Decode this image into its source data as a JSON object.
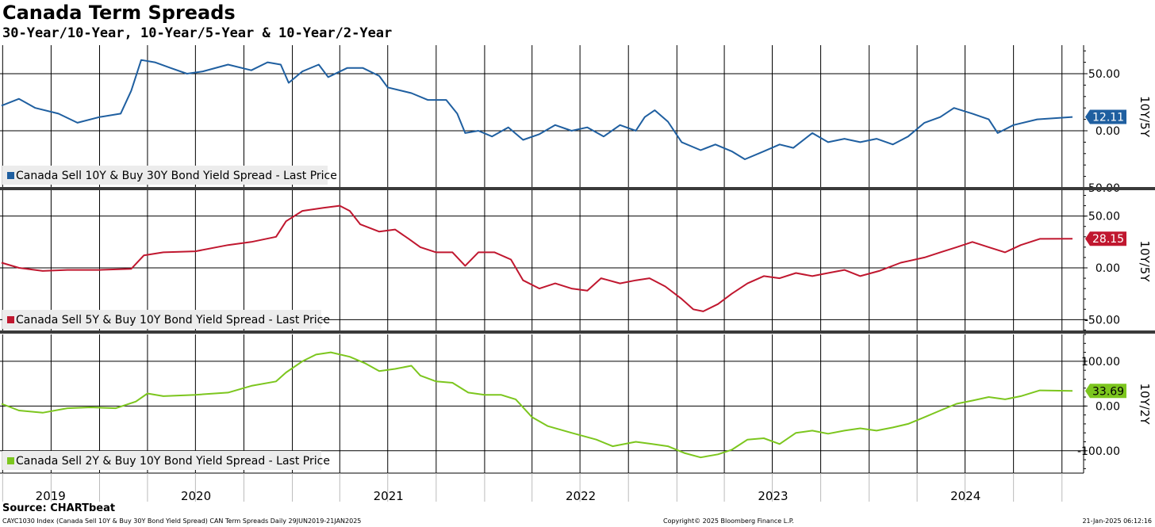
{
  "header": {
    "title": "Canada Term Spreads",
    "subtitle": "30-Year/10-Year, 10-Year/5-Year & 10-Year/2-Year"
  },
  "footer": {
    "source": "Source: CHARTbeat",
    "left": "CAYC1030 Index (Canada Sell 10Y & Buy 30Y Bond Yield Spread) CAN Term Spreads  Daily 29JUN2019-21JAN2025",
    "middle": "Copyright© 2025 Bloomberg Finance L.P.",
    "right": "21-Jan-2025 06:12:16"
  },
  "chart_data": {
    "type": "line",
    "x_axis": {
      "range": [
        "2019-06-29",
        "2025-01-21"
      ],
      "year_labels": [
        "2019",
        "2020",
        "2021",
        "2022",
        "2023",
        "2024"
      ],
      "quarter_gridlines": true
    },
    "grid": true,
    "legend_placement": "bottom-left",
    "panels": [
      {
        "series_name": "Canada Sell 10Y & Buy 30Y Bond Yield Spread - Last Price",
        "axis_label": "10Y/5Y",
        "color": "#1f5fa0",
        "ylim": [
          -50,
          75
        ],
        "yticks": [
          50,
          0,
          -50
        ],
        "ytick_labels": [
          "50.00",
          "0.00",
          "-50.00"
        ],
        "last_value": "12.11",
        "points": [
          [
            "2019-06-29",
            22
          ],
          [
            "2019-08-01",
            28
          ],
          [
            "2019-09-01",
            20
          ],
          [
            "2019-10-15",
            15
          ],
          [
            "2019-11-20",
            7
          ],
          [
            "2020-01-01",
            12
          ],
          [
            "2020-02-10",
            15
          ],
          [
            "2020-03-01",
            35
          ],
          [
            "2020-03-20",
            62
          ],
          [
            "2020-04-15",
            60
          ],
          [
            "2020-05-15",
            55
          ],
          [
            "2020-06-15",
            50
          ],
          [
            "2020-07-15",
            52
          ],
          [
            "2020-09-01",
            58
          ],
          [
            "2020-10-15",
            53
          ],
          [
            "2020-11-15",
            60
          ],
          [
            "2020-12-10",
            58
          ],
          [
            "2020-12-25",
            42
          ],
          [
            "2021-01-20",
            52
          ],
          [
            "2021-02-20",
            58
          ],
          [
            "2021-03-10",
            47
          ],
          [
            "2021-04-15",
            55
          ],
          [
            "2021-05-15",
            55
          ],
          [
            "2021-06-15",
            48
          ],
          [
            "2021-07-01",
            38
          ],
          [
            "2021-08-15",
            33
          ],
          [
            "2021-09-15",
            27
          ],
          [
            "2021-10-20",
            27
          ],
          [
            "2021-11-10",
            15
          ],
          [
            "2021-11-25",
            -2
          ],
          [
            "2021-12-20",
            0
          ],
          [
            "2022-01-15",
            -5
          ],
          [
            "2022-02-15",
            3
          ],
          [
            "2022-03-15",
            -8
          ],
          [
            "2022-04-15",
            -3
          ],
          [
            "2022-05-15",
            5
          ],
          [
            "2022-06-15",
            0
          ],
          [
            "2022-07-15",
            3
          ],
          [
            "2022-08-15",
            -5
          ],
          [
            "2022-09-15",
            5
          ],
          [
            "2022-10-15",
            0
          ],
          [
            "2022-11-01",
            12
          ],
          [
            "2022-11-20",
            18
          ],
          [
            "2022-12-15",
            8
          ],
          [
            "2023-01-10",
            -10
          ],
          [
            "2023-02-15",
            -17
          ],
          [
            "2023-03-15",
            -12
          ],
          [
            "2023-04-15",
            -18
          ],
          [
            "2023-05-10",
            -25
          ],
          [
            "2023-06-15",
            -18
          ],
          [
            "2023-07-15",
            -12
          ],
          [
            "2023-08-10",
            -15
          ],
          [
            "2023-09-15",
            -2
          ],
          [
            "2023-10-15",
            -10
          ],
          [
            "2023-11-15",
            -7
          ],
          [
            "2023-12-15",
            -10
          ],
          [
            "2024-01-15",
            -7
          ],
          [
            "2024-02-15",
            -12
          ],
          [
            "2024-03-15",
            -5
          ],
          [
            "2024-04-15",
            7
          ],
          [
            "2024-05-15",
            12
          ],
          [
            "2024-06-10",
            20
          ],
          [
            "2024-07-15",
            15
          ],
          [
            "2024-08-15",
            10
          ],
          [
            "2024-09-01",
            -2
          ],
          [
            "2024-10-01",
            5
          ],
          [
            "2024-11-15",
            10
          ],
          [
            "2025-01-21",
            12.11
          ]
        ]
      },
      {
        "series_name": "Canada Sell 5Y & Buy 10Y Bond Yield Spread - Last Price",
        "axis_label": "10Y/5Y",
        "color": "#c0172f",
        "ylim": [
          -62,
          75
        ],
        "yticks": [
          50,
          0,
          -50
        ],
        "ytick_labels": [
          "50.00",
          "0.00",
          "-50.00"
        ],
        "last_value": "28.15",
        "points": [
          [
            "2019-06-29",
            5
          ],
          [
            "2019-08-01",
            0
          ],
          [
            "2019-09-15",
            -3
          ],
          [
            "2019-11-01",
            -2
          ],
          [
            "2020-01-01",
            -2
          ],
          [
            "2020-03-01",
            -1
          ],
          [
            "2020-03-25",
            12
          ],
          [
            "2020-05-01",
            15
          ],
          [
            "2020-07-01",
            16
          ],
          [
            "2020-09-01",
            22
          ],
          [
            "2020-10-15",
            25
          ],
          [
            "2020-12-01",
            30
          ],
          [
            "2020-12-20",
            45
          ],
          [
            "2021-01-20",
            55
          ],
          [
            "2021-03-01",
            58
          ],
          [
            "2021-04-01",
            60
          ],
          [
            "2021-04-20",
            55
          ],
          [
            "2021-05-10",
            42
          ],
          [
            "2021-06-15",
            35
          ],
          [
            "2021-07-15",
            37
          ],
          [
            "2021-08-10",
            28
          ],
          [
            "2021-09-01",
            20
          ],
          [
            "2021-10-01",
            15
          ],
          [
            "2021-11-01",
            15
          ],
          [
            "2021-11-25",
            2
          ],
          [
            "2021-12-20",
            15
          ],
          [
            "2022-01-20",
            15
          ],
          [
            "2022-02-20",
            8
          ],
          [
            "2022-03-15",
            -12
          ],
          [
            "2022-04-15",
            -20
          ],
          [
            "2022-05-15",
            -15
          ],
          [
            "2022-06-15",
            -20
          ],
          [
            "2022-07-15",
            -22
          ],
          [
            "2022-08-10",
            -10
          ],
          [
            "2022-09-15",
            -15
          ],
          [
            "2022-10-15",
            -12
          ],
          [
            "2022-11-10",
            -10
          ],
          [
            "2022-12-10",
            -18
          ],
          [
            "2023-01-10",
            -30
          ],
          [
            "2023-02-01",
            -40
          ],
          [
            "2023-02-20",
            -42
          ],
          [
            "2023-03-20",
            -35
          ],
          [
            "2023-04-15",
            -25
          ],
          [
            "2023-05-15",
            -15
          ],
          [
            "2023-06-15",
            -8
          ],
          [
            "2023-07-15",
            -10
          ],
          [
            "2023-08-15",
            -5
          ],
          [
            "2023-09-15",
            -8
          ],
          [
            "2023-10-15",
            -5
          ],
          [
            "2023-11-15",
            -2
          ],
          [
            "2023-12-15",
            -8
          ],
          [
            "2024-01-20",
            -3
          ],
          [
            "2024-03-01",
            5
          ],
          [
            "2024-04-15",
            10
          ],
          [
            "2024-05-15",
            15
          ],
          [
            "2024-06-15",
            20
          ],
          [
            "2024-07-15",
            25
          ],
          [
            "2024-08-15",
            20
          ],
          [
            "2024-09-15",
            15
          ],
          [
            "2024-10-15",
            22
          ],
          [
            "2024-11-20",
            28
          ],
          [
            "2025-01-21",
            28.15
          ]
        ]
      },
      {
        "series_name": "Canada Sell 2Y & Buy 10Y Bond Yield Spread - Last Price",
        "axis_label": "10Y/2Y",
        "color": "#7cc61e",
        "ylim": [
          -150,
          160
        ],
        "yticks": [
          100,
          0,
          -100
        ],
        "ytick_labels": [
          "100.00",
          "0.00",
          "-100.00"
        ],
        "last_value": "33.69",
        "points": [
          [
            "2019-06-29",
            5
          ],
          [
            "2019-08-01",
            -10
          ],
          [
            "2019-09-15",
            -15
          ],
          [
            "2019-11-01",
            -5
          ],
          [
            "2019-12-15",
            -3
          ],
          [
            "2020-02-01",
            -5
          ],
          [
            "2020-03-10",
            10
          ],
          [
            "2020-04-01",
            28
          ],
          [
            "2020-05-01",
            22
          ],
          [
            "2020-07-01",
            25
          ],
          [
            "2020-09-01",
            30
          ],
          [
            "2020-10-15",
            45
          ],
          [
            "2020-12-01",
            55
          ],
          [
            "2020-12-20",
            75
          ],
          [
            "2021-01-20",
            100
          ],
          [
            "2021-02-15",
            115
          ],
          [
            "2021-03-15",
            120
          ],
          [
            "2021-04-20",
            110
          ],
          [
            "2021-05-20",
            95
          ],
          [
            "2021-06-15",
            78
          ],
          [
            "2021-07-15",
            83
          ],
          [
            "2021-08-15",
            90
          ],
          [
            "2021-09-01",
            68
          ],
          [
            "2021-10-01",
            55
          ],
          [
            "2021-11-01",
            52
          ],
          [
            "2021-12-01",
            30
          ],
          [
            "2022-01-01",
            25
          ],
          [
            "2022-02-01",
            25
          ],
          [
            "2022-03-01",
            15
          ],
          [
            "2022-04-01",
            -25
          ],
          [
            "2022-05-01",
            -45
          ],
          [
            "2022-06-15",
            -60
          ],
          [
            "2022-08-01",
            -75
          ],
          [
            "2022-09-01",
            -90
          ],
          [
            "2022-10-15",
            -80
          ],
          [
            "2022-11-15",
            -85
          ],
          [
            "2022-12-15",
            -90
          ],
          [
            "2023-01-15",
            -105
          ],
          [
            "2023-02-15",
            -115
          ],
          [
            "2023-03-20",
            -108
          ],
          [
            "2023-04-15",
            -98
          ],
          [
            "2023-05-15",
            -75
          ],
          [
            "2023-06-15",
            -72
          ],
          [
            "2023-07-15",
            -85
          ],
          [
            "2023-08-15",
            -60
          ],
          [
            "2023-09-15",
            -55
          ],
          [
            "2023-10-15",
            -62
          ],
          [
            "2023-11-15",
            -55
          ],
          [
            "2023-12-15",
            -50
          ],
          [
            "2024-01-15",
            -55
          ],
          [
            "2024-02-15",
            -48
          ],
          [
            "2024-03-15",
            -40
          ],
          [
            "2024-04-15",
            -25
          ],
          [
            "2024-05-15",
            -10
          ],
          [
            "2024-06-15",
            5
          ],
          [
            "2024-07-15",
            12
          ],
          [
            "2024-08-15",
            20
          ],
          [
            "2024-09-15",
            15
          ],
          [
            "2024-10-15",
            22
          ],
          [
            "2024-11-20",
            35
          ],
          [
            "2025-01-21",
            33.69
          ]
        ]
      }
    ]
  }
}
